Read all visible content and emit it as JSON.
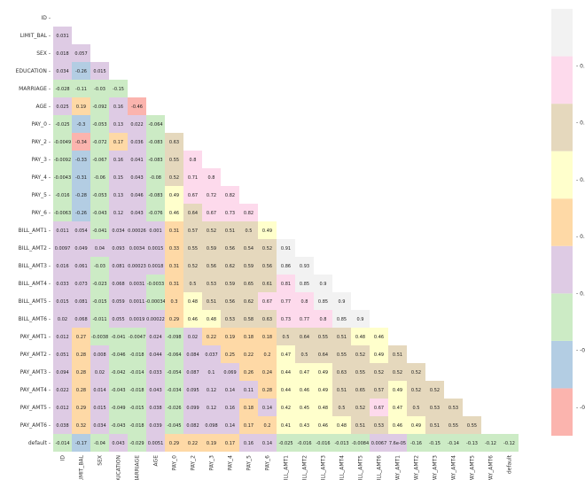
{
  "chart_data": {
    "type": "heatmap",
    "title": "",
    "labels": [
      "ID",
      "LIMIT_BAL",
      "SEX",
      "EDUCATION",
      "MARRIAGE",
      "AGE",
      "PAY_0",
      "PAY_2",
      "PAY_3",
      "PAY_4",
      "PAY_5",
      "PAY_6",
      "BILL_AMT1",
      "BILL_AMT2",
      "BILL_AMT3",
      "BILL_AMT4",
      "BILL_AMT5",
      "BILL_AMT6",
      "PAY_AMT1",
      "PAY_AMT2",
      "PAY_AMT3",
      "PAY_AMT4",
      "PAY_AMT5",
      "PAY_AMT6",
      "default"
    ],
    "lower_triangle": [
      [],
      [
        "0.031"
      ],
      [
        "0.018",
        "0.057"
      ],
      [
        "0.034",
        "-0.26",
        "0.015"
      ],
      [
        "-0.028",
        "-0.11",
        "-0.03",
        "-0.15"
      ],
      [
        "0.025",
        "0.19",
        "-0.092",
        "0.16",
        "-0.46"
      ],
      [
        "-0.025",
        "-0.3",
        "-0.053",
        "0.13",
        "0.022",
        "-0.064"
      ],
      [
        "-0.0049",
        "-0.34",
        "-0.072",
        "0.17",
        "0.036",
        "-0.083",
        "0.63"
      ],
      [
        "-0.0092",
        "-0.33",
        "-0.067",
        "0.16",
        "0.041",
        "-0.083",
        "0.55",
        "0.8"
      ],
      [
        "-0.0043",
        "-0.31",
        "-0.06",
        "0.15",
        "0.043",
        "-0.08",
        "0.52",
        "0.71",
        "0.8"
      ],
      [
        "-0.016",
        "-0.28",
        "-0.053",
        "0.13",
        "0.046",
        "-0.083",
        "0.49",
        "0.67",
        "0.72",
        "0.82"
      ],
      [
        "-0.0063",
        "-0.26",
        "-0.043",
        "0.12",
        "0.043",
        "-0.076",
        "0.46",
        "0.64",
        "0.67",
        "0.73",
        "0.82"
      ],
      [
        "0.011",
        "0.054",
        "-0.041",
        "0.034",
        "0.00026",
        "0.001",
        "0.31",
        "0.57",
        "0.52",
        "0.51",
        "0.5",
        "0.49"
      ],
      [
        "0.0097",
        "0.049",
        "0.04",
        "0.093",
        "0.0034",
        "0.0015",
        "0.33",
        "0.55",
        "0.59",
        "0.56",
        "0.54",
        "0.52",
        "0.91"
      ],
      [
        "0.016",
        "0.061",
        "-0.03",
        "0.081",
        "0.00023",
        "0.0018",
        "0.31",
        "0.52",
        "0.56",
        "0.62",
        "0.59",
        "0.56",
        "0.86",
        "0.93"
      ],
      [
        "0.033",
        "0.073",
        "-0.023",
        "0.068",
        "0.0031",
        "-0.0033",
        "0.31",
        "0.5",
        "0.53",
        "0.59",
        "0.65",
        "0.61",
        "0.81",
        "0.85",
        "0.9"
      ],
      [
        "0.015",
        "0.081",
        "-0.015",
        "0.059",
        "0.0011",
        "-0.00034",
        "0.3",
        "0.48",
        "0.51",
        "0.56",
        "0.62",
        "0.67",
        "0.77",
        "0.8",
        "0.85",
        "0.9"
      ],
      [
        "0.02",
        "0.068",
        "-0.011",
        "0.055",
        "0.0019",
        "0.00022",
        "0.29",
        "0.46",
        "0.48",
        "0.53",
        "0.58",
        "0.63",
        "0.73",
        "0.77",
        "0.8",
        "0.85",
        "0.9"
      ],
      [
        "0.012",
        "0.27",
        "-0.0038",
        "-0.041",
        "-0.0047",
        "0.024",
        "-0.098",
        "0.02",
        "0.22",
        "0.19",
        "0.18",
        "0.18",
        "0.5",
        "0.64",
        "0.55",
        "0.51",
        "0.48",
        "0.46"
      ],
      [
        "0.051",
        "0.28",
        "0.008",
        "-0.046",
        "-0.018",
        "0.044",
        "-0.064",
        "0.084",
        "0.037",
        "0.25",
        "0.22",
        "0.2",
        "0.47",
        "0.5",
        "0.64",
        "0.55",
        "0.52",
        "0.49",
        "0.51"
      ],
      [
        "0.094",
        "0.28",
        "0.02",
        "-0.042",
        "-0.014",
        "0.033",
        "-0.054",
        "0.087",
        "0.1",
        "0.069",
        "0.26",
        "0.24",
        "0.44",
        "0.47",
        "0.49",
        "0.63",
        "0.55",
        "0.52",
        "0.52",
        "0.52"
      ],
      [
        "0.022",
        "0.28",
        "0.014",
        "-0.043",
        "-0.018",
        "0.043",
        "-0.034",
        "0.095",
        "0.12",
        "0.14",
        "0.11",
        "0.28",
        "0.44",
        "0.46",
        "0.49",
        "0.51",
        "0.65",
        "0.57",
        "0.49",
        "0.52",
        "0.52"
      ],
      [
        "0.012",
        "0.29",
        "0.015",
        "-0.049",
        "-0.015",
        "0.038",
        "-0.026",
        "0.099",
        "0.12",
        "0.16",
        "0.18",
        "0.14",
        "0.42",
        "0.45",
        "0.48",
        "0.5",
        "0.52",
        "0.67",
        "0.47",
        "0.5",
        "0.53",
        "0.53"
      ],
      [
        "0.038",
        "0.32",
        "0.034",
        "-0.043",
        "-0.018",
        "0.039",
        "-0.045",
        "0.082",
        "0.098",
        "0.14",
        "0.17",
        "0.2",
        "0.41",
        "0.43",
        "0.46",
        "0.48",
        "0.51",
        "0.53",
        "0.46",
        "0.49",
        "0.51",
        "0.55",
        "0.55"
      ],
      [
        "-0.014",
        "-0.17",
        "-0.04",
        "0.043",
        "-0.029",
        "0.0051",
        "0.29",
        "0.22",
        "0.19",
        "0.17",
        "0.16",
        "0.14",
        "-0.025",
        "-0.016",
        "-0.016",
        "-0.013",
        "-0.0084",
        "0.0067",
        "7.6e-05",
        "-0.16",
        "-0.15",
        "-0.14",
        "-0.13",
        "-0.12",
        "-0.12"
      ]
    ],
    "colormap": "Pastel1",
    "colorbar": {
      "ticks": [
        "0.8",
        "0.6",
        "0.4",
        "0.2",
        "0.0",
        "-0.2",
        "-0.4"
      ],
      "range": [
        -0.5,
        1.0
      ]
    },
    "color_stops": [
      "#fbb4ae",
      "#b3cde3",
      "#ccebc5",
      "#decbe4",
      "#fed9a6",
      "#ffffcc",
      "#e5d8bd",
      "#fddaec",
      "#f2f2f2"
    ]
  }
}
